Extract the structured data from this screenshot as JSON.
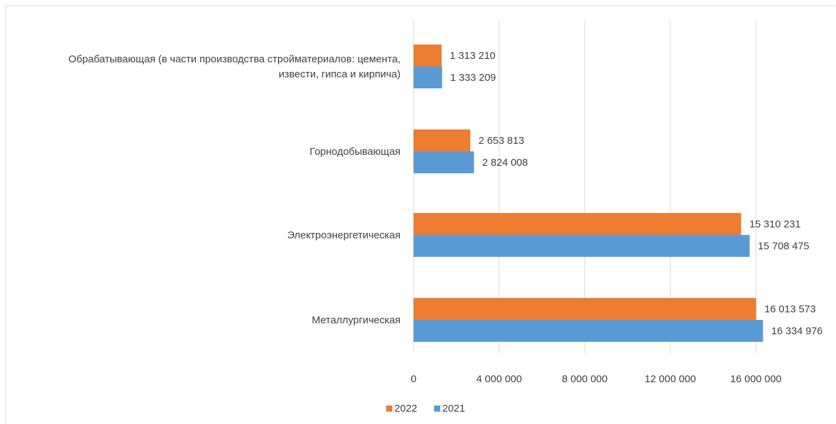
{
  "chart_data": {
    "type": "bar",
    "orientation": "horizontal",
    "categories": [
      "Обрабатывающая (в части производства стройматериалов: цемента, извести, гипса и кирпича)",
      "Горнодобывающая",
      "Электроэнергетическая",
      "Металлургическая"
    ],
    "category_lines": [
      [
        "Обрабатывающая (в части производства стройматериалов: цемента,",
        "извести, гипса и кирпича)"
      ],
      [
        "Горнодобывающая"
      ],
      [
        "Электроэнергетическая"
      ],
      [
        "Металлургическая"
      ]
    ],
    "series": [
      {
        "name": "2022",
        "color": "#ed7d31",
        "values": [
          1313210,
          2653813,
          15310231,
          16013573
        ],
        "labels": [
          "1 313 210",
          "2 653 813",
          "15 310 231",
          "16 013 573"
        ]
      },
      {
        "name": "2021",
        "color": "#5b9bd5",
        "values": [
          1333209,
          2824008,
          15708475,
          16334976
        ],
        "labels": [
          "1 333 209",
          "2 824 008",
          "15 708 475",
          "16 334 976"
        ]
      }
    ],
    "xlim": [
      0,
      16000000
    ],
    "x_ticks": [
      0,
      4000000,
      8000000,
      12000000,
      16000000
    ],
    "x_tick_labels": [
      "0",
      "4 000 000",
      "8 000 000",
      "12 000 000",
      "16 000 000"
    ],
    "grid": true,
    "legend": {
      "position": "bottom",
      "items": [
        {
          "name": "2022",
          "color": "#ed7d31"
        },
        {
          "name": "2021",
          "color": "#5b9bd5"
        }
      ]
    },
    "title": "",
    "xlabel": "",
    "ylabel": ""
  }
}
